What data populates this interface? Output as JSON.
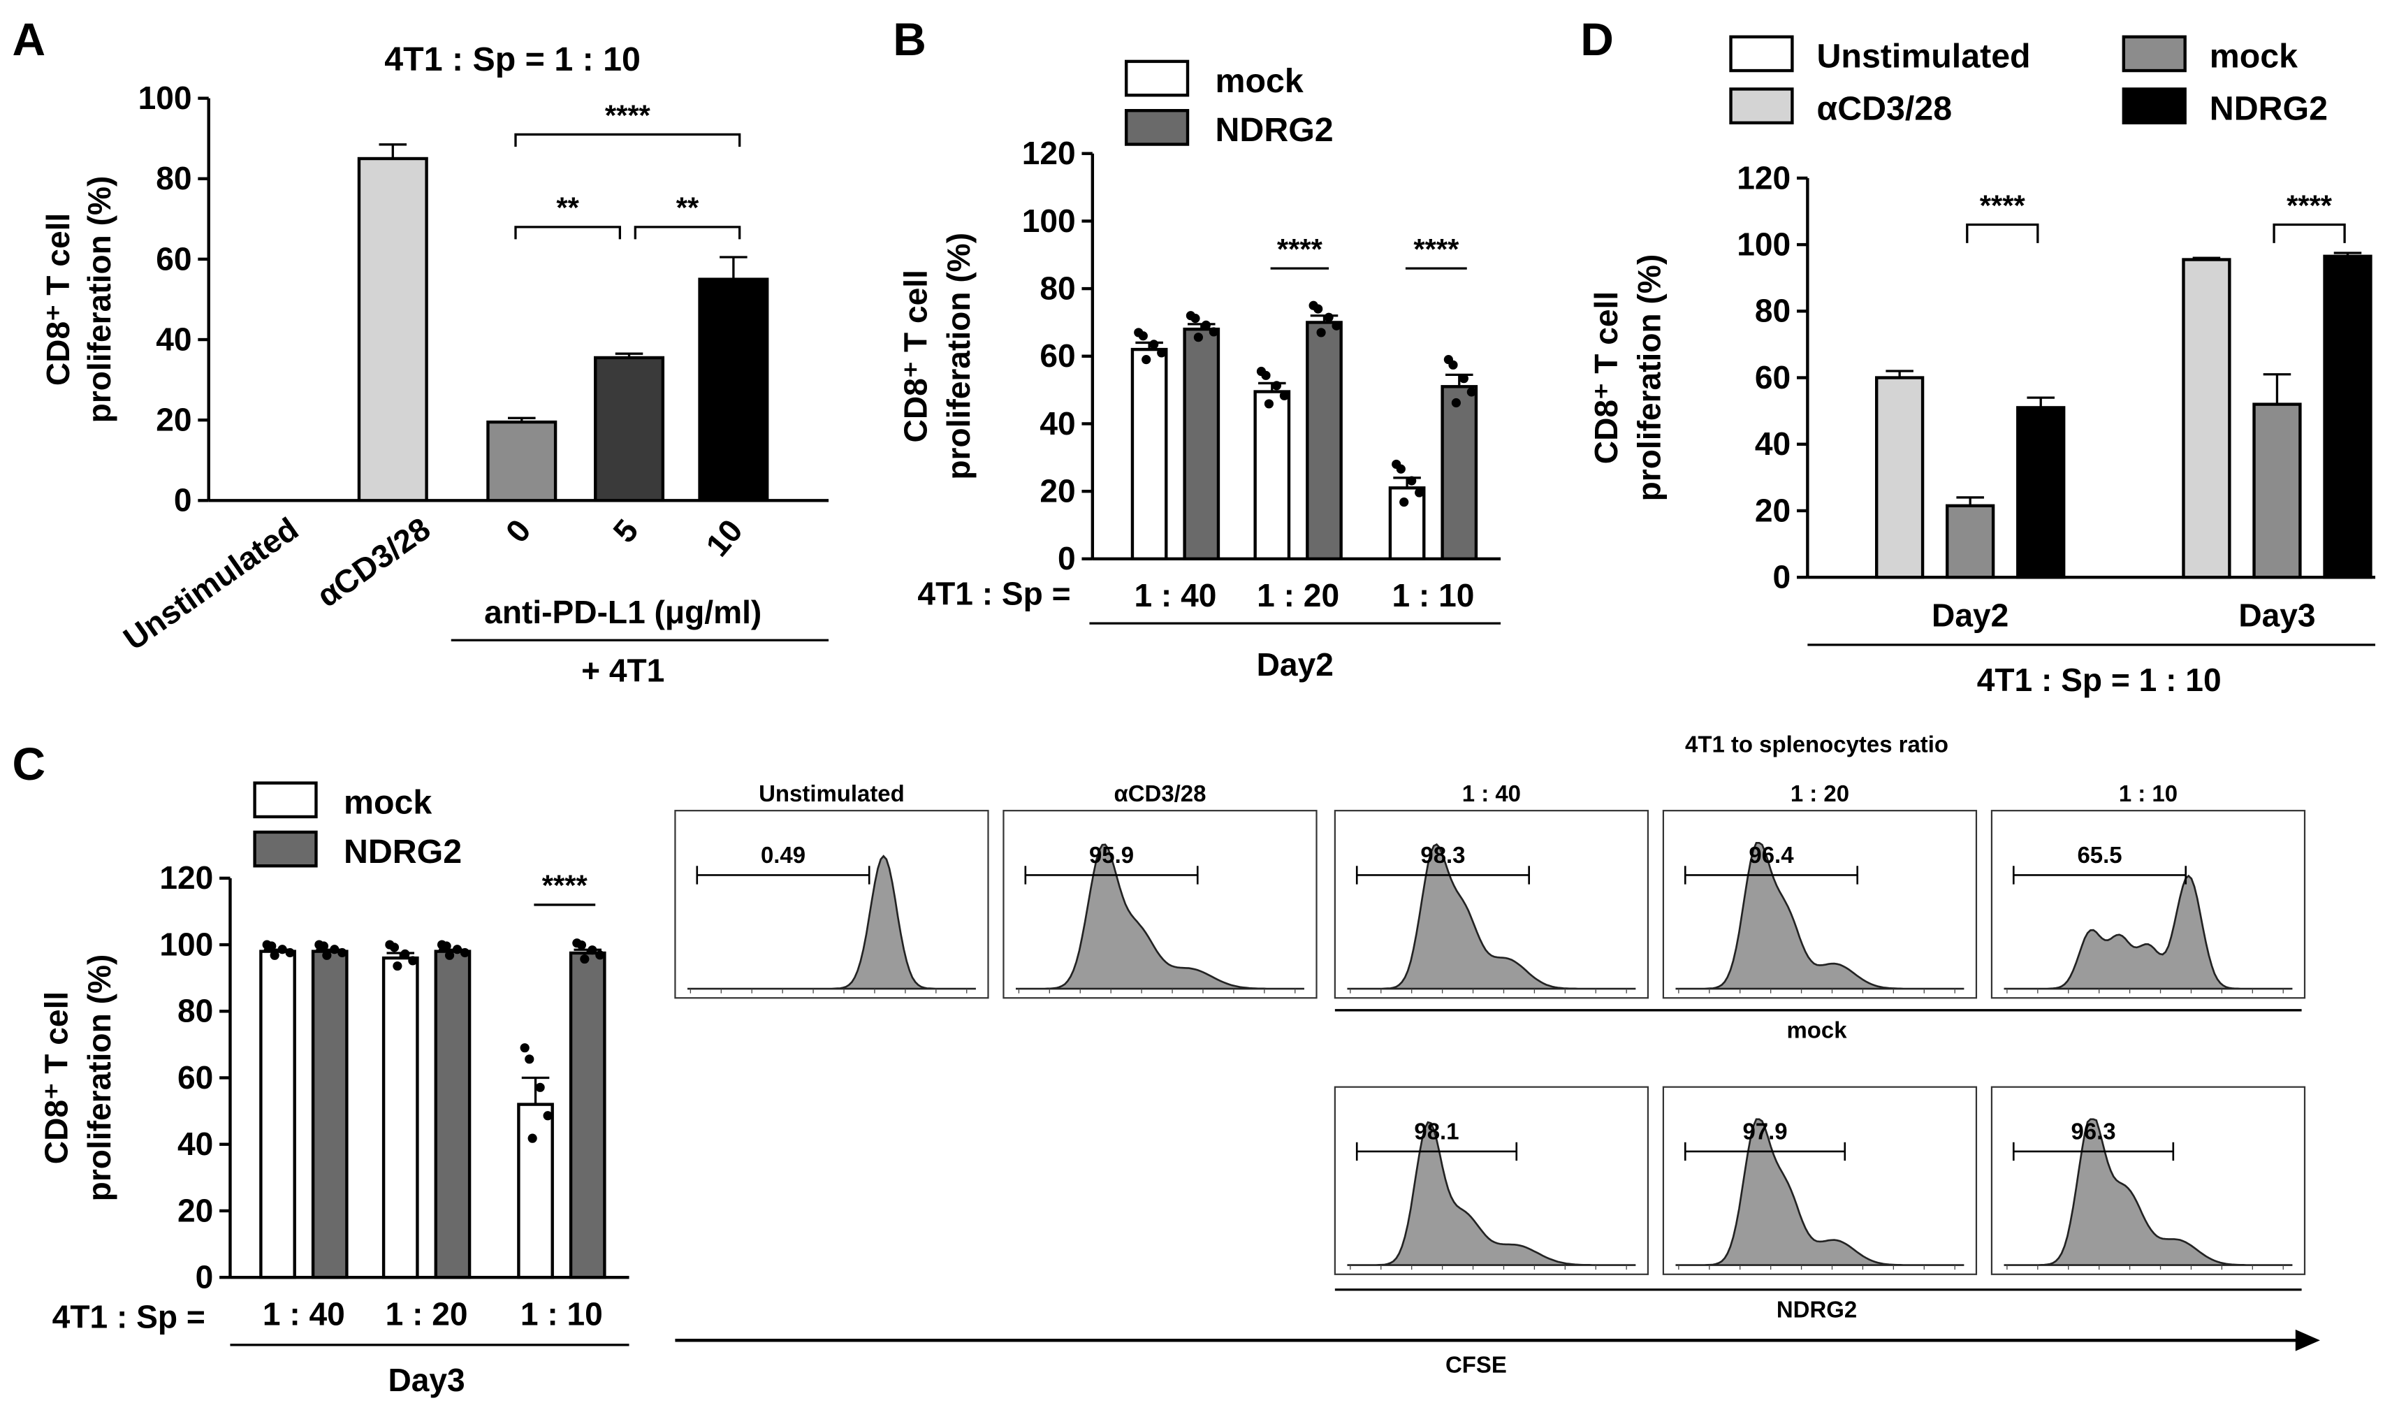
{
  "colors": {
    "white": "#ffffff",
    "light_gray": "#d4d4d4",
    "mid_gray": "#8c8c8c",
    "dark_gray": "#6a6a6a",
    "darker_gray": "#3a3a3a",
    "black": "#000000",
    "histogram_fill": "#9b9b9b"
  },
  "chart_data": [
    {
      "panel": "A",
      "type": "bar",
      "title": "4T1 : Sp = 1 : 10",
      "ylabel_line1": "CD8⁺ T cell",
      "ylabel_line2": "proliferation (%)",
      "ylim": [
        0,
        100
      ],
      "yticks": [
        "0",
        "20",
        "40",
        "60",
        "80",
        "100"
      ],
      "categories": [
        "Unstimulated",
        "αCD3/28",
        "0",
        "5",
        "10"
      ],
      "values": [
        0,
        85,
        19.5,
        35.5,
        55
      ],
      "errors": [
        0,
        3.5,
        1,
        1,
        5.5
      ],
      "group_label": "anti-PD-L1 (μg/ml)",
      "group_label2": "+ 4T1",
      "significance": [
        "**",
        "**",
        "****"
      ]
    },
    {
      "panel": "B",
      "type": "bar",
      "ylabel_line1": "CD8⁺ T cell",
      "ylabel_line2": "proliferation (%)",
      "ylim": [
        0,
        120
      ],
      "yticks": [
        "0",
        "20",
        "40",
        "60",
        "80",
        "100",
        "120"
      ],
      "ratio_label": "4T1 : Sp =",
      "categories": [
        "1 : 40",
        "1 : 20",
        "1 : 10"
      ],
      "series": [
        {
          "name": "mock",
          "values": [
            62,
            49.5,
            21
          ],
          "errors": [
            2,
            2.5,
            3
          ]
        },
        {
          "name": "NDRG2",
          "values": [
            68,
            70,
            51
          ],
          "errors": [
            1.5,
            2,
            3.5
          ]
        }
      ],
      "group_label": "Day2",
      "significance": [
        "****",
        "****"
      ]
    },
    {
      "panel": "C",
      "type": "bar",
      "ylabel_line1": "CD8⁺ T cell",
      "ylabel_line2": "proliferation (%)",
      "ylim": [
        0,
        120
      ],
      "yticks": [
        "0",
        "20",
        "40",
        "60",
        "80",
        "100",
        "120"
      ],
      "ratio_label": "4T1 : Sp =",
      "categories": [
        "1 : 40",
        "1 : 20",
        "1 : 10"
      ],
      "series": [
        {
          "name": "mock",
          "values": [
            98,
            96,
            52
          ],
          "errors": [
            0.5,
            1.5,
            8
          ]
        },
        {
          "name": "NDRG2",
          "values": [
            98,
            98,
            97.5
          ],
          "errors": [
            0.5,
            0.5,
            1
          ]
        }
      ],
      "group_label": "Day3",
      "significance": [
        "****"
      ]
    },
    {
      "panel": "D",
      "type": "bar",
      "ylabel_line1": "CD8⁺ T cell",
      "ylabel_line2": "proliferation (%)",
      "ylim": [
        0,
        120
      ],
      "yticks": [
        "0",
        "20",
        "40",
        "60",
        "80",
        "100",
        "120"
      ],
      "legend": [
        "Unstimulated",
        "αCD3/28",
        "mock",
        "NDRG2"
      ],
      "categories": [
        "Day2",
        "Day3"
      ],
      "series": [
        {
          "name": "αCD3/28",
          "values": [
            60,
            95.5
          ],
          "errors": [
            2,
            0.5
          ]
        },
        {
          "name": "mock",
          "values": [
            21.5,
            52
          ],
          "errors": [
            2.5,
            9
          ]
        },
        {
          "name": "NDRG2",
          "values": [
            51,
            96.5
          ],
          "errors": [
            3,
            1
          ]
        }
      ],
      "group_label": "4T1 : Sp = 1 : 10",
      "significance": [
        "****",
        "****"
      ]
    }
  ],
  "flow": {
    "header": "4T1 to splenocytes ratio",
    "columns": [
      "Unstimulated",
      "αCD3/28",
      "1 : 40",
      "1 : 20",
      "1 : 10"
    ],
    "mock_label": "mock",
    "ndrg2_label": "NDRG2",
    "axis_label": "CFSE",
    "row1_values": [
      "0.49",
      "95.9",
      "98.3",
      "96.4",
      "65.5"
    ],
    "row2_values": [
      "98.1",
      "97.9",
      "96.3"
    ]
  },
  "panel_letters": [
    "A",
    "B",
    "C",
    "D"
  ]
}
